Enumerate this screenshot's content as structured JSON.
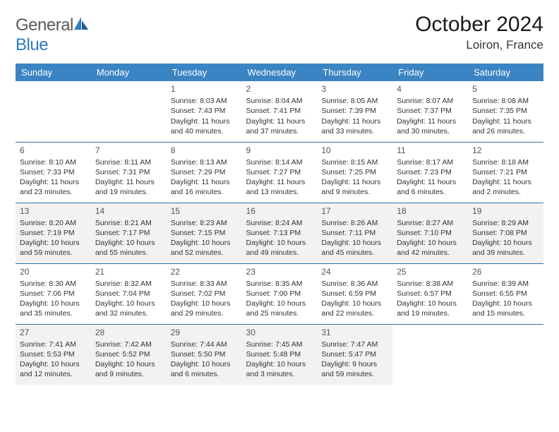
{
  "brand": {
    "name1": "General",
    "name2": "Blue"
  },
  "header": {
    "title": "October 2024",
    "location": "Loiron, France"
  },
  "colors": {
    "header_bg": "#3b84c4",
    "rule": "#2f6fa8",
    "alt_row": "#f2f2f2"
  },
  "weekdays": [
    "Sunday",
    "Monday",
    "Tuesday",
    "Wednesday",
    "Thursday",
    "Friday",
    "Saturday"
  ],
  "weeks": [
    {
      "alt": false,
      "days": [
        null,
        null,
        {
          "n": "1",
          "sr": "Sunrise: 8:03 AM",
          "ss": "Sunset: 7:43 PM",
          "dl": "Daylight: 11 hours and 40 minutes."
        },
        {
          "n": "2",
          "sr": "Sunrise: 8:04 AM",
          "ss": "Sunset: 7:41 PM",
          "dl": "Daylight: 11 hours and 37 minutes."
        },
        {
          "n": "3",
          "sr": "Sunrise: 8:05 AM",
          "ss": "Sunset: 7:39 PM",
          "dl": "Daylight: 11 hours and 33 minutes."
        },
        {
          "n": "4",
          "sr": "Sunrise: 8:07 AM",
          "ss": "Sunset: 7:37 PM",
          "dl": "Daylight: 11 hours and 30 minutes."
        },
        {
          "n": "5",
          "sr": "Sunrise: 8:08 AM",
          "ss": "Sunset: 7:35 PM",
          "dl": "Daylight: 11 hours and 26 minutes."
        }
      ]
    },
    {
      "alt": false,
      "days": [
        {
          "n": "6",
          "sr": "Sunrise: 8:10 AM",
          "ss": "Sunset: 7:33 PM",
          "dl": "Daylight: 11 hours and 23 minutes."
        },
        {
          "n": "7",
          "sr": "Sunrise: 8:11 AM",
          "ss": "Sunset: 7:31 PM",
          "dl": "Daylight: 11 hours and 19 minutes."
        },
        {
          "n": "8",
          "sr": "Sunrise: 8:13 AM",
          "ss": "Sunset: 7:29 PM",
          "dl": "Daylight: 11 hours and 16 minutes."
        },
        {
          "n": "9",
          "sr": "Sunrise: 8:14 AM",
          "ss": "Sunset: 7:27 PM",
          "dl": "Daylight: 11 hours and 13 minutes."
        },
        {
          "n": "10",
          "sr": "Sunrise: 8:15 AM",
          "ss": "Sunset: 7:25 PM",
          "dl": "Daylight: 11 hours and 9 minutes."
        },
        {
          "n": "11",
          "sr": "Sunrise: 8:17 AM",
          "ss": "Sunset: 7:23 PM",
          "dl": "Daylight: 11 hours and 6 minutes."
        },
        {
          "n": "12",
          "sr": "Sunrise: 8:18 AM",
          "ss": "Sunset: 7:21 PM",
          "dl": "Daylight: 11 hours and 2 minutes."
        }
      ]
    },
    {
      "alt": true,
      "days": [
        {
          "n": "13",
          "sr": "Sunrise: 8:20 AM",
          "ss": "Sunset: 7:19 PM",
          "dl": "Daylight: 10 hours and 59 minutes."
        },
        {
          "n": "14",
          "sr": "Sunrise: 8:21 AM",
          "ss": "Sunset: 7:17 PM",
          "dl": "Daylight: 10 hours and 55 minutes."
        },
        {
          "n": "15",
          "sr": "Sunrise: 8:23 AM",
          "ss": "Sunset: 7:15 PM",
          "dl": "Daylight: 10 hours and 52 minutes."
        },
        {
          "n": "16",
          "sr": "Sunrise: 8:24 AM",
          "ss": "Sunset: 7:13 PM",
          "dl": "Daylight: 10 hours and 49 minutes."
        },
        {
          "n": "17",
          "sr": "Sunrise: 8:26 AM",
          "ss": "Sunset: 7:11 PM",
          "dl": "Daylight: 10 hours and 45 minutes."
        },
        {
          "n": "18",
          "sr": "Sunrise: 8:27 AM",
          "ss": "Sunset: 7:10 PM",
          "dl": "Daylight: 10 hours and 42 minutes."
        },
        {
          "n": "19",
          "sr": "Sunrise: 8:29 AM",
          "ss": "Sunset: 7:08 PM",
          "dl": "Daylight: 10 hours and 39 minutes."
        }
      ]
    },
    {
      "alt": false,
      "days": [
        {
          "n": "20",
          "sr": "Sunrise: 8:30 AM",
          "ss": "Sunset: 7:06 PM",
          "dl": "Daylight: 10 hours and 35 minutes."
        },
        {
          "n": "21",
          "sr": "Sunrise: 8:32 AM",
          "ss": "Sunset: 7:04 PM",
          "dl": "Daylight: 10 hours and 32 minutes."
        },
        {
          "n": "22",
          "sr": "Sunrise: 8:33 AM",
          "ss": "Sunset: 7:02 PM",
          "dl": "Daylight: 10 hours and 29 minutes."
        },
        {
          "n": "23",
          "sr": "Sunrise: 8:35 AM",
          "ss": "Sunset: 7:00 PM",
          "dl": "Daylight: 10 hours and 25 minutes."
        },
        {
          "n": "24",
          "sr": "Sunrise: 8:36 AM",
          "ss": "Sunset: 6:59 PM",
          "dl": "Daylight: 10 hours and 22 minutes."
        },
        {
          "n": "25",
          "sr": "Sunrise: 8:38 AM",
          "ss": "Sunset: 6:57 PM",
          "dl": "Daylight: 10 hours and 19 minutes."
        },
        {
          "n": "26",
          "sr": "Sunrise: 8:39 AM",
          "ss": "Sunset: 6:55 PM",
          "dl": "Daylight: 10 hours and 15 minutes."
        }
      ]
    },
    {
      "alt": true,
      "days": [
        {
          "n": "27",
          "sr": "Sunrise: 7:41 AM",
          "ss": "Sunset: 5:53 PM",
          "dl": "Daylight: 10 hours and 12 minutes."
        },
        {
          "n": "28",
          "sr": "Sunrise: 7:42 AM",
          "ss": "Sunset: 5:52 PM",
          "dl": "Daylight: 10 hours and 9 minutes."
        },
        {
          "n": "29",
          "sr": "Sunrise: 7:44 AM",
          "ss": "Sunset: 5:50 PM",
          "dl": "Daylight: 10 hours and 6 minutes."
        },
        {
          "n": "30",
          "sr": "Sunrise: 7:45 AM",
          "ss": "Sunset: 5:48 PM",
          "dl": "Daylight: 10 hours and 3 minutes."
        },
        {
          "n": "31",
          "sr": "Sunrise: 7:47 AM",
          "ss": "Sunset: 5:47 PM",
          "dl": "Daylight: 9 hours and 59 minutes."
        },
        null,
        null
      ]
    }
  ]
}
